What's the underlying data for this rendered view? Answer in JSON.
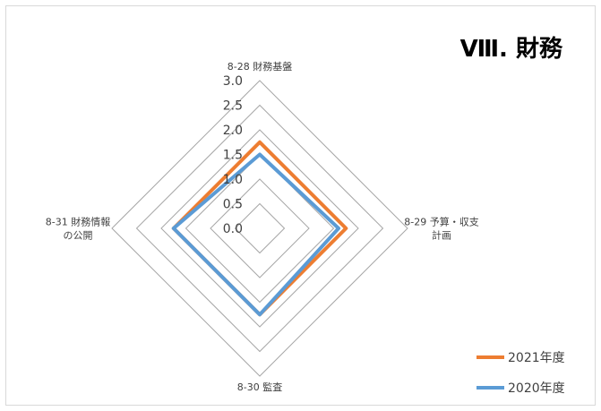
{
  "chart_data": {
    "type": "radar",
    "title": "Ⅷ. 財務",
    "axes": [
      {
        "lines": [
          "8-28 財務基盤"
        ]
      },
      {
        "lines": [
          "8-29 予算・収支",
          "計画"
        ]
      },
      {
        "lines": [
          "8-30 監査"
        ]
      },
      {
        "lines": [
          "8-31 財務情報",
          "の公開"
        ]
      }
    ],
    "ticks": [
      "0.0",
      "0.5",
      "1.0",
      "1.5",
      "2.0",
      "2.5",
      "3.0"
    ],
    "range": [
      0,
      3
    ],
    "series": [
      {
        "name": "2021年度",
        "color": "#ed7d31",
        "values": [
          1.75,
          1.75,
          1.75,
          1.75
        ]
      },
      {
        "name": "2020年度",
        "color": "#5b9bd5",
        "values": [
          1.5,
          1.6,
          1.75,
          1.75
        ]
      }
    ],
    "legend_position": "bottom-right"
  }
}
